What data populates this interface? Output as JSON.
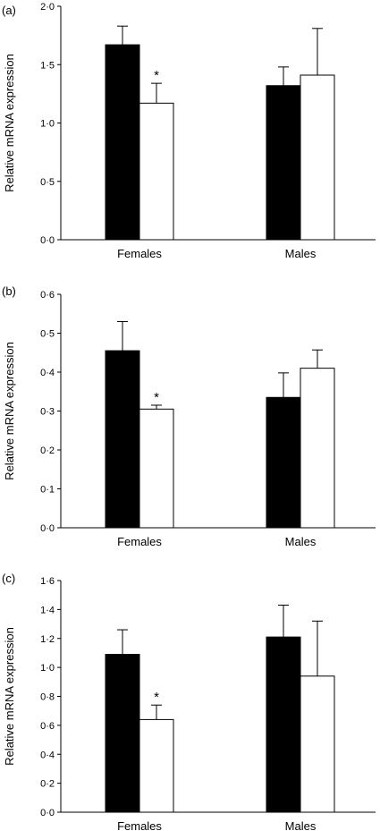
{
  "chart_data": [
    {
      "type": "bar",
      "panel_label": "(a)",
      "categories": [
        "Females",
        "Males"
      ],
      "ylabel": "Relative mRNA expression",
      "ylim": [
        0,
        2.0
      ],
      "yticks": [
        "0·0",
        "0·5",
        "1·0",
        "1·5",
        "2·0"
      ],
      "ytick_values": [
        0,
        0.5,
        1.0,
        1.5,
        2.0
      ],
      "series": [
        {
          "color": "#000000",
          "values": [
            1.67,
            1.32
          ],
          "errors": [
            0.16,
            0.16
          ]
        },
        {
          "color": "#ffffff",
          "values": [
            1.17,
            1.41
          ],
          "errors": [
            0.17,
            0.4
          ]
        }
      ],
      "annotations": [
        {
          "text": "*",
          "category": 0,
          "series": 1
        }
      ]
    },
    {
      "type": "bar",
      "panel_label": "(b)",
      "categories": [
        "Females",
        "Males"
      ],
      "ylabel": "Relative mRNA expression",
      "ylim": [
        0,
        0.6
      ],
      "yticks": [
        "0·0",
        "0·1",
        "0·2",
        "0·3",
        "0·4",
        "0·5",
        "0·6"
      ],
      "ytick_values": [
        0,
        0.1,
        0.2,
        0.3,
        0.4,
        0.5,
        0.6
      ],
      "series": [
        {
          "color": "#000000",
          "values": [
            0.455,
            0.335
          ],
          "errors": [
            0.075,
            0.063
          ]
        },
        {
          "color": "#ffffff",
          "values": [
            0.305,
            0.41
          ],
          "errors": [
            0.01,
            0.047
          ]
        }
      ],
      "annotations": [
        {
          "text": "*",
          "category": 0,
          "series": 1
        }
      ]
    },
    {
      "type": "bar",
      "panel_label": "(c)",
      "categories": [
        "Females",
        "Males"
      ],
      "ylabel": "Relative mRNA expression",
      "ylim": [
        0,
        1.6
      ],
      "yticks": [
        "0·0",
        "0·2",
        "0·4",
        "0·6",
        "0·8",
        "1·0",
        "1·2",
        "1·4",
        "1·6"
      ],
      "ytick_values": [
        0,
        0.2,
        0.4,
        0.6,
        0.8,
        1.0,
        1.2,
        1.4,
        1.6
      ],
      "series": [
        {
          "color": "#000000",
          "values": [
            1.09,
            1.21
          ],
          "errors": [
            0.17,
            0.22
          ]
        },
        {
          "color": "#ffffff",
          "values": [
            0.64,
            0.94
          ],
          "errors": [
            0.1,
            0.38
          ]
        }
      ],
      "annotations": [
        {
          "text": "*",
          "category": 0,
          "series": 1
        }
      ]
    }
  ]
}
